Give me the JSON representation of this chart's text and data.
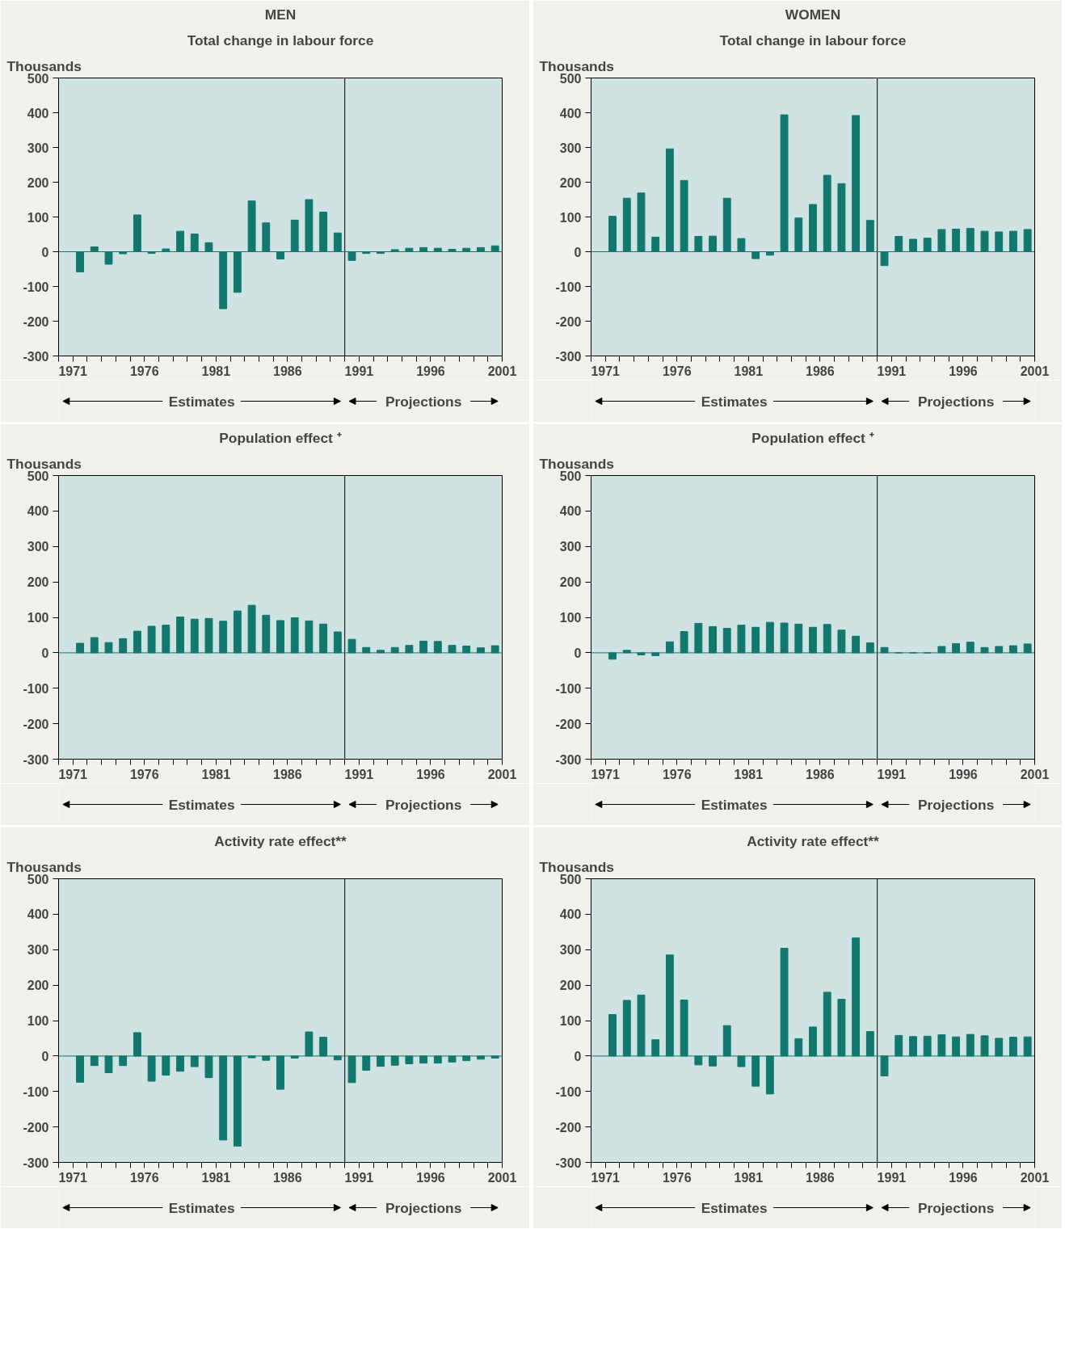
{
  "chart_data": [
    {
      "type": "bar",
      "title": "MEN",
      "subtitle": "Total change in labour force",
      "ylabel": "Thousands",
      "color": "#11776f",
      "x": [
        1971.5,
        1972.5,
        1973.5,
        1974.5,
        1975.5,
        1976.5,
        1977.5,
        1978.5,
        1979.5,
        1980.5,
        1981.5,
        1982.5,
        1983.5,
        1984.5,
        1985.5,
        1986.5,
        1987.5,
        1988.5,
        1989.5,
        1990.5,
        1991.5,
        1992.5,
        1993.5,
        1994.5,
        1995.5,
        1996.5,
        1997.5,
        1998.5,
        1999.5,
        2000.5
      ],
      "values": [
        -58,
        14,
        -36,
        -6,
        106,
        -5,
        8,
        59,
        51,
        26,
        -164,
        -117,
        146,
        83,
        -21,
        91,
        150,
        114,
        54,
        -25,
        -5,
        -5,
        6,
        10,
        12,
        10,
        7,
        10,
        12,
        17
      ],
      "xlim": [
        1970,
        2001
      ],
      "ylim": [
        -300,
        500
      ],
      "yticks": [
        -300,
        -200,
        -100,
        0,
        100,
        200,
        300,
        400,
        500
      ],
      "xticks": [
        {
          "value": 1970,
          "label": null
        },
        1971,
        {
          "value": 1972,
          "label": null
        },
        {
          "value": 1973,
          "label": null
        },
        {
          "value": 1974,
          "label": null
        },
        {
          "value": 1975,
          "label": null
        },
        1976,
        {
          "value": 1977,
          "label": null
        },
        {
          "value": 1978,
          "label": null
        },
        {
          "value": 1979,
          "label": null
        },
        {
          "value": 1980,
          "label": null
        },
        1981,
        {
          "value": 1982,
          "label": null
        },
        {
          "value": 1983,
          "label": null
        },
        {
          "value": 1984,
          "label": null
        },
        {
          "value": 1985,
          "label": null
        },
        1986,
        {
          "value": 1987,
          "label": null
        },
        {
          "value": 1988,
          "label": null
        },
        {
          "value": 1989,
          "label": null
        },
        {
          "value": 1990,
          "label": null
        },
        1991,
        {
          "value": 1992,
          "label": null
        },
        {
          "value": 1993,
          "label": null
        },
        {
          "value": 1994,
          "label": null
        },
        {
          "value": 1995,
          "label": null
        },
        1996,
        {
          "value": 1997,
          "label": null
        },
        {
          "value": 1998,
          "label": null
        },
        {
          "value": 1999,
          "label": null
        },
        {
          "value": 2000,
          "label": null
        },
        2001
      ],
      "ref_lines": [
        {
          "axis": "x",
          "value": 1990,
          "color": "#000000"
        },
        {
          "axis": "y",
          "value": 0,
          "color": "#11776f"
        }
      ],
      "annotations": [
        "Estimates",
        "Projections"
      ]
    },
    {
      "type": "bar",
      "title": "WOMEN",
      "subtitle": "Total change in labour force",
      "ylabel": "Thousands",
      "color": "#11776f",
      "x": [
        1971.5,
        1972.5,
        1973.5,
        1974.5,
        1975.5,
        1976.5,
        1977.5,
        1978.5,
        1979.5,
        1980.5,
        1981.5,
        1982.5,
        1983.5,
        1984.5,
        1985.5,
        1986.5,
        1987.5,
        1988.5,
        1989.5,
        1990.5,
        1991.5,
        1992.5,
        1993.5,
        1994.5,
        1995.5,
        1996.5,
        1997.5,
        1998.5,
        1999.5,
        2000.5
      ],
      "values": [
        102,
        154,
        169,
        42,
        296,
        205,
        44,
        45,
        154,
        38,
        -20,
        -10,
        394,
        97,
        136,
        220,
        196,
        392,
        90,
        -40,
        44,
        36,
        39,
        64,
        65,
        67,
        59,
        57,
        59,
        64
      ],
      "xlim": [
        1970,
        2001
      ],
      "ylim": [
        -300,
        500
      ],
      "yticks": [
        -300,
        -200,
        -100,
        0,
        100,
        200,
        300,
        400,
        500
      ],
      "xticks": [
        {
          "value": 1970,
          "label": null
        },
        1971,
        {
          "value": 1972,
          "label": null
        },
        {
          "value": 1973,
          "label": null
        },
        {
          "value": 1974,
          "label": null
        },
        {
          "value": 1975,
          "label": null
        },
        1976,
        {
          "value": 1977,
          "label": null
        },
        {
          "value": 1978,
          "label": null
        },
        {
          "value": 1979,
          "label": null
        },
        {
          "value": 1980,
          "label": null
        },
        1981,
        {
          "value": 1982,
          "label": null
        },
        {
          "value": 1983,
          "label": null
        },
        {
          "value": 1984,
          "label": null
        },
        {
          "value": 1985,
          "label": null
        },
        1986,
        {
          "value": 1987,
          "label": null
        },
        {
          "value": 1988,
          "label": null
        },
        {
          "value": 1989,
          "label": null
        },
        {
          "value": 1990,
          "label": null
        },
        1991,
        {
          "value": 1992,
          "label": null
        },
        {
          "value": 1993,
          "label": null
        },
        {
          "value": 1994,
          "label": null
        },
        {
          "value": 1995,
          "label": null
        },
        1996,
        {
          "value": 1997,
          "label": null
        },
        {
          "value": 1998,
          "label": null
        },
        {
          "value": 1999,
          "label": null
        },
        {
          "value": 2000,
          "label": null
        },
        2001
      ],
      "ref_lines": [
        {
          "axis": "x",
          "value": 1990,
          "color": "#000000"
        },
        {
          "axis": "y",
          "value": 0,
          "color": "#11776f"
        }
      ],
      "annotations": [
        "Estimates",
        "Projections"
      ]
    },
    {
      "type": "bar",
      "title": "Population effect ⁺",
      "ylabel": "Thousands",
      "color": "#11776f",
      "x": [
        1971.5,
        1972.5,
        1973.5,
        1974.5,
        1975.5,
        1976.5,
        1977.5,
        1978.5,
        1979.5,
        1980.5,
        1981.5,
        1982.5,
        1983.5,
        1984.5,
        1985.5,
        1986.5,
        1987.5,
        1988.5,
        1989.5,
        1990.5,
        1991.5,
        1992.5,
        1993.5,
        1994.5,
        1995.5,
        1996.5,
        1997.5,
        1998.5,
        1999.5,
        2000.5
      ],
      "values": [
        27,
        43,
        29,
        40,
        61,
        75,
        78,
        101,
        95,
        97,
        89,
        118,
        134,
        106,
        91,
        99,
        90,
        81,
        59,
        38,
        15,
        7,
        15,
        21,
        33,
        32,
        21,
        19,
        14,
        20
      ],
      "xlim": [
        1970,
        2001
      ],
      "ylim": [
        -300,
        500
      ],
      "yticks": [
        -300,
        -200,
        -100,
        0,
        100,
        200,
        300,
        400,
        500
      ],
      "xticks": [
        {
          "value": 1970,
          "label": null
        },
        1971,
        {
          "value": 1972,
          "label": null
        },
        {
          "value": 1973,
          "label": null
        },
        {
          "value": 1974,
          "label": null
        },
        {
          "value": 1975,
          "label": null
        },
        1976,
        {
          "value": 1977,
          "label": null
        },
        {
          "value": 1978,
          "label": null
        },
        {
          "value": 1979,
          "label": null
        },
        {
          "value": 1980,
          "label": null
        },
        1981,
        {
          "value": 1982,
          "label": null
        },
        {
          "value": 1983,
          "label": null
        },
        {
          "value": 1984,
          "label": null
        },
        {
          "value": 1985,
          "label": null
        },
        1986,
        {
          "value": 1987,
          "label": null
        },
        {
          "value": 1988,
          "label": null
        },
        {
          "value": 1989,
          "label": null
        },
        {
          "value": 1990,
          "label": null
        },
        1991,
        {
          "value": 1992,
          "label": null
        },
        {
          "value": 1993,
          "label": null
        },
        {
          "value": 1994,
          "label": null
        },
        {
          "value": 1995,
          "label": null
        },
        1996,
        {
          "value": 1997,
          "label": null
        },
        {
          "value": 1998,
          "label": null
        },
        {
          "value": 1999,
          "label": null
        },
        {
          "value": 2000,
          "label": null
        },
        2001
      ],
      "ref_lines": [
        {
          "axis": "x",
          "value": 1990,
          "color": "#000000"
        },
        {
          "axis": "y",
          "value": 0,
          "color": "#11776f"
        }
      ],
      "annotations": [
        "Estimates",
        "Projections"
      ]
    },
    {
      "type": "bar",
      "title": "Population effect ⁺",
      "ylabel": "Thousands",
      "color": "#11776f",
      "x": [
        1971.5,
        1972.5,
        1973.5,
        1974.5,
        1975.5,
        1976.5,
        1977.5,
        1978.5,
        1979.5,
        1980.5,
        1981.5,
        1982.5,
        1983.5,
        1984.5,
        1985.5,
        1986.5,
        1987.5,
        1988.5,
        1989.5,
        1990.5,
        1991.5,
        1992.5,
        1993.5,
        1994.5,
        1995.5,
        1996.5,
        1997.5,
        1998.5,
        1999.5,
        2000.5
      ],
      "values": [
        -18,
        7,
        -6,
        -8,
        31,
        60,
        83,
        74,
        69,
        78,
        72,
        86,
        84,
        81,
        72,
        80,
        64,
        47,
        28,
        15,
        0,
        0,
        0,
        18,
        26,
        30,
        15,
        18,
        20,
        25
      ],
      "xlim": [
        1970,
        2001
      ],
      "ylim": [
        -300,
        500
      ],
      "yticks": [
        -300,
        -200,
        -100,
        0,
        100,
        200,
        300,
        400,
        500
      ],
      "xticks": [
        {
          "value": 1970,
          "label": null
        },
        1971,
        {
          "value": 1972,
          "label": null
        },
        {
          "value": 1973,
          "label": null
        },
        {
          "value": 1974,
          "label": null
        },
        {
          "value": 1975,
          "label": null
        },
        1976,
        {
          "value": 1977,
          "label": null
        },
        {
          "value": 1978,
          "label": null
        },
        {
          "value": 1979,
          "label": null
        },
        {
          "value": 1980,
          "label": null
        },
        1981,
        {
          "value": 1982,
          "label": null
        },
        {
          "value": 1983,
          "label": null
        },
        {
          "value": 1984,
          "label": null
        },
        {
          "value": 1985,
          "label": null
        },
        1986,
        {
          "value": 1987,
          "label": null
        },
        {
          "value": 1988,
          "label": null
        },
        {
          "value": 1989,
          "label": null
        },
        {
          "value": 1990,
          "label": null
        },
        1991,
        {
          "value": 1992,
          "label": null
        },
        {
          "value": 1993,
          "label": null
        },
        {
          "value": 1994,
          "label": null
        },
        {
          "value": 1995,
          "label": null
        },
        1996,
        {
          "value": 1997,
          "label": null
        },
        {
          "value": 1998,
          "label": null
        },
        {
          "value": 1999,
          "label": null
        },
        {
          "value": 2000,
          "label": null
        },
        2001
      ],
      "ref_lines": [
        {
          "axis": "x",
          "value": 1990,
          "color": "#000000"
        },
        {
          "axis": "y",
          "value": 0,
          "color": "#11776f"
        }
      ],
      "annotations": [
        "Estimates",
        "Projections"
      ]
    },
    {
      "type": "bar",
      "title": "Activity rate effect**",
      "ylabel": "Thousands",
      "color": "#11776f",
      "x": [
        1971.5,
        1972.5,
        1973.5,
        1974.5,
        1975.5,
        1976.5,
        1977.5,
        1978.5,
        1979.5,
        1980.5,
        1981.5,
        1982.5,
        1983.5,
        1984.5,
        1985.5,
        1986.5,
        1987.5,
        1988.5,
        1989.5,
        1990.5,
        1991.5,
        1992.5,
        1993.5,
        1994.5,
        1995.5,
        1996.5,
        1997.5,
        1998.5,
        1999.5,
        2000.5
      ],
      "values": [
        -74,
        -27,
        -47,
        -27,
        66,
        -71,
        -54,
        -43,
        -30,
        -61,
        -237,
        -254,
        -5,
        -12,
        -94,
        -6,
        68,
        53,
        -11,
        -75,
        -40,
        -29,
        -26,
        -22,
        -20,
        -20,
        -17,
        -13,
        -9,
        -6
      ],
      "xlim": [
        1970,
        2001
      ],
      "ylim": [
        -300,
        500
      ],
      "yticks": [
        -300,
        -200,
        -100,
        0,
        100,
        200,
        300,
        400,
        500
      ],
      "xticks": [
        {
          "value": 1970,
          "label": null
        },
        1971,
        {
          "value": 1972,
          "label": null
        },
        {
          "value": 1973,
          "label": null
        },
        {
          "value": 1974,
          "label": null
        },
        {
          "value": 1975,
          "label": null
        },
        1976,
        {
          "value": 1977,
          "label": null
        },
        {
          "value": 1978,
          "label": null
        },
        {
          "value": 1979,
          "label": null
        },
        {
          "value": 1980,
          "label": null
        },
        1981,
        {
          "value": 1982,
          "label": null
        },
        {
          "value": 1983,
          "label": null
        },
        {
          "value": 1984,
          "label": null
        },
        {
          "value": 1985,
          "label": null
        },
        1986,
        {
          "value": 1987,
          "label": null
        },
        {
          "value": 1988,
          "label": null
        },
        {
          "value": 1989,
          "label": null
        },
        {
          "value": 1990,
          "label": null
        },
        1991,
        {
          "value": 1992,
          "label": null
        },
        {
          "value": 1993,
          "label": null
        },
        {
          "value": 1994,
          "label": null
        },
        {
          "value": 1995,
          "label": null
        },
        1996,
        {
          "value": 1997,
          "label": null
        },
        {
          "value": 1998,
          "label": null
        },
        {
          "value": 1999,
          "label": null
        },
        {
          "value": 2000,
          "label": null
        },
        2001
      ],
      "ref_lines": [
        {
          "axis": "x",
          "value": 1990,
          "color": "#000000"
        },
        {
          "axis": "y",
          "value": 0,
          "color": "#11776f"
        }
      ],
      "annotations": [
        "Estimates",
        "Projections"
      ]
    },
    {
      "type": "bar",
      "title": "Activity rate effect**",
      "ylabel": "Thousands",
      "color": "#11776f",
      "x": [
        1971.5,
        1972.5,
        1973.5,
        1974.5,
        1975.5,
        1976.5,
        1977.5,
        1978.5,
        1979.5,
        1980.5,
        1981.5,
        1982.5,
        1983.5,
        1984.5,
        1985.5,
        1986.5,
        1987.5,
        1988.5,
        1989.5,
        1990.5,
        1991.5,
        1992.5,
        1993.5,
        1994.5,
        1995.5,
        1996.5,
        1997.5,
        1998.5,
        1999.5,
        2000.5
      ],
      "values": [
        117,
        157,
        172,
        46,
        285,
        158,
        -25,
        -28,
        86,
        -30,
        -85,
        -107,
        304,
        49,
        82,
        180,
        160,
        333,
        69,
        -56,
        58,
        55,
        56,
        60,
        54,
        61,
        57,
        50,
        53,
        54
      ],
      "xlim": [
        1970,
        2001
      ],
      "ylim": [
        -300,
        500
      ],
      "yticks": [
        -300,
        -200,
        -100,
        0,
        100,
        200,
        300,
        400,
        500
      ],
      "xticks": [
        {
          "value": 1970,
          "label": null
        },
        1971,
        {
          "value": 1972,
          "label": null
        },
        {
          "value": 1973,
          "label": null
        },
        {
          "value": 1974,
          "label": null
        },
        {
          "value": 1975,
          "label": null
        },
        1976,
        {
          "value": 1977,
          "label": null
        },
        {
          "value": 1978,
          "label": null
        },
        {
          "value": 1979,
          "label": null
        },
        {
          "value": 1980,
          "label": null
        },
        1981,
        {
          "value": 1982,
          "label": null
        },
        {
          "value": 1983,
          "label": null
        },
        {
          "value": 1984,
          "label": null
        },
        {
          "value": 1985,
          "label": null
        },
        1986,
        {
          "value": 1987,
          "label": null
        },
        {
          "value": 1988,
          "label": null
        },
        {
          "value": 1989,
          "label": null
        },
        {
          "value": 1990,
          "label": null
        },
        1991,
        {
          "value": 1992,
          "label": null
        },
        {
          "value": 1993,
          "label": null
        },
        {
          "value": 1994,
          "label": null
        },
        {
          "value": 1995,
          "label": null
        },
        1996,
        {
          "value": 1997,
          "label": null
        },
        {
          "value": 1998,
          "label": null
        },
        {
          "value": 1999,
          "label": null
        },
        {
          "value": 2000,
          "label": null
        },
        2001
      ],
      "ref_lines": [
        {
          "axis": "x",
          "value": 1990,
          "color": "#000000"
        },
        {
          "axis": "y",
          "value": 0,
          "color": "#11776f"
        }
      ],
      "annotations": [
        "Estimates",
        "Projections"
      ]
    }
  ]
}
